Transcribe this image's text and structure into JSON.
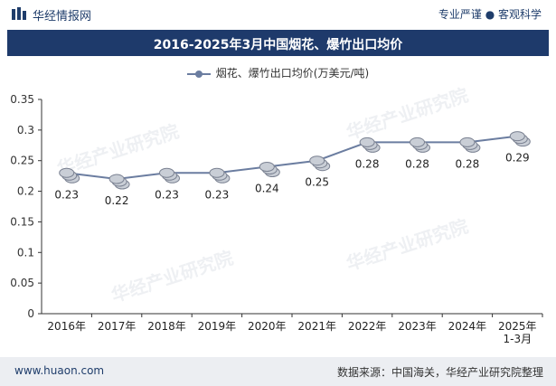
{
  "header": {
    "brand": "华经情报网",
    "tagline": "专业严谨 ● 客观科学"
  },
  "title": "2016-2025年3月中国烟花、爆竹出口均价",
  "legend": {
    "label": "烟花、爆竹出口均价(万美元/吨)"
  },
  "footer": {
    "left": "www.huaon.com",
    "right": "数据来源：中国海关，华经产业研究院整理"
  },
  "watermark": {
    "text": "华经产业研究院",
    "url": "www.huaon.com"
  },
  "colors": {
    "titlebar": "#1e3a6b",
    "line": "#6b7da0",
    "coin": "#c9ced6"
  },
  "chart_data": {
    "type": "line",
    "title": "2016-2025年3月中国烟花、爆竹出口均价",
    "categories": [
      "2016年",
      "2017年",
      "2018年",
      "2019年",
      "2020年",
      "2021年",
      "2022年",
      "2023年",
      "2024年",
      "2025年\n1-3月"
    ],
    "series": [
      {
        "name": "烟花、爆竹出口均价(万美元/吨)",
        "values": [
          0.23,
          0.22,
          0.23,
          0.23,
          0.24,
          0.25,
          0.28,
          0.28,
          0.28,
          0.29
        ]
      }
    ],
    "yticks": [
      "0",
      "0.05",
      "0.1",
      "0.15",
      "0.2",
      "0.25",
      "0.3",
      "0.35"
    ],
    "ylim": [
      0,
      0.35
    ],
    "grid": false,
    "legend": "top-center"
  }
}
